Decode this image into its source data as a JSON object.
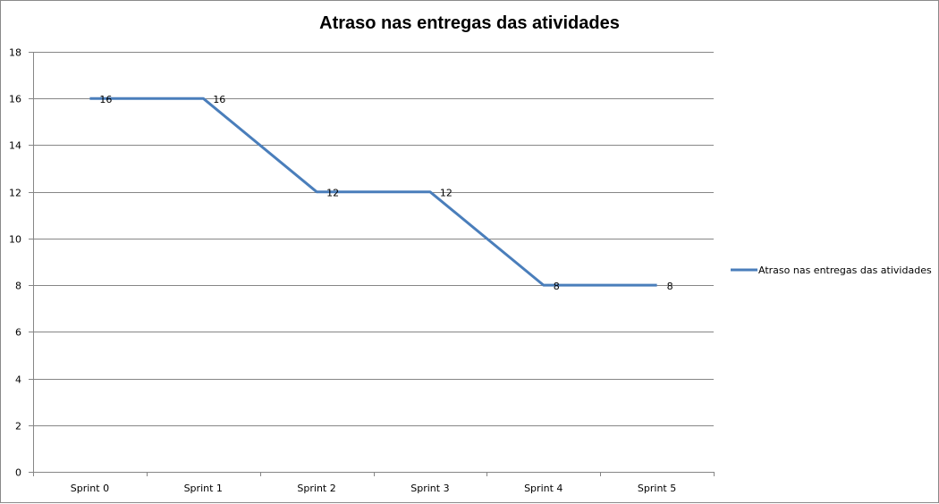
{
  "chart_data": {
    "type": "line",
    "title": "Atraso nas entregas das atividades",
    "categories": [
      "Sprint 0",
      "Sprint 1",
      "Sprint 2",
      "Sprint 3",
      "Sprint 4",
      "Sprint 5"
    ],
    "series": [
      {
        "name": "Atraso nas entregas das atividades",
        "values": [
          16,
          16,
          12,
          12,
          8,
          8
        ],
        "color": "#4a7ebb"
      }
    ],
    "y_ticks": [
      "0",
      "2",
      "4",
      "6",
      "8",
      "10",
      "12",
      "14",
      "16",
      "18"
    ],
    "ylim": [
      0,
      18
    ],
    "ystep": 2,
    "grid": true,
    "data_labels": true,
    "legend_position": "right"
  }
}
